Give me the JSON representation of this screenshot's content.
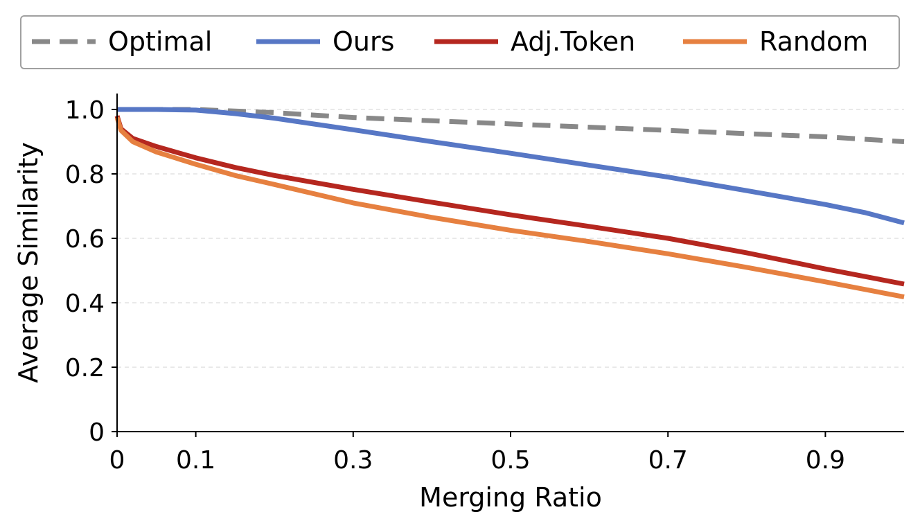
{
  "chart_data": {
    "type": "line",
    "title": "",
    "xlabel": "Merging Ratio",
    "ylabel": "Average Similarity",
    "xlim": [
      0,
      1.0
    ],
    "ylim": [
      0,
      1.05
    ],
    "xticks": [
      0,
      0.1,
      0.3,
      0.5,
      0.7,
      0.9
    ],
    "xtick_labels": [
      "0",
      "0.1",
      "0.3",
      "0.5",
      "0.7",
      "0.9"
    ],
    "yticks": [
      0,
      0.2,
      0.4,
      0.6,
      0.8,
      1.0
    ],
    "ytick_labels": [
      "0",
      "0.2",
      "0.4",
      "0.6",
      "0.8",
      "1.0"
    ],
    "grid": "horizontal dashed",
    "legend_position": "top",
    "series": [
      {
        "name": "Optimal",
        "color": "#888888",
        "style": "dashed",
        "x": [
          0,
          0.1,
          0.2,
          0.3,
          0.4,
          0.5,
          0.6,
          0.7,
          0.8,
          0.9,
          1.0
        ],
        "y": [
          1.0,
          1.0,
          0.99,
          0.975,
          0.965,
          0.955,
          0.945,
          0.935,
          0.925,
          0.915,
          0.9
        ]
      },
      {
        "name": "Ours",
        "color": "#5777c5",
        "style": "solid",
        "x": [
          0,
          0.05,
          0.1,
          0.15,
          0.2,
          0.3,
          0.4,
          0.5,
          0.6,
          0.7,
          0.8,
          0.9,
          0.95,
          1.0
        ],
        "y": [
          1.0,
          1.0,
          0.998,
          0.987,
          0.973,
          0.937,
          0.9,
          0.864,
          0.827,
          0.79,
          0.748,
          0.705,
          0.68,
          0.648
        ]
      },
      {
        "name": "Adj.Token",
        "color": "#b5271f",
        "style": "solid",
        "x": [
          0,
          0.005,
          0.02,
          0.05,
          0.1,
          0.15,
          0.2,
          0.3,
          0.4,
          0.5,
          0.6,
          0.7,
          0.8,
          0.85,
          0.9,
          1.0
        ],
        "y": [
          0.98,
          0.94,
          0.91,
          0.885,
          0.85,
          0.82,
          0.795,
          0.752,
          0.712,
          0.673,
          0.637,
          0.6,
          0.555,
          0.53,
          0.505,
          0.458
        ]
      },
      {
        "name": "Random",
        "color": "#e68040",
        "style": "solid",
        "x": [
          0,
          0.005,
          0.02,
          0.05,
          0.1,
          0.15,
          0.2,
          0.3,
          0.4,
          0.5,
          0.6,
          0.7,
          0.8,
          0.9,
          1.0
        ],
        "y": [
          0.975,
          0.935,
          0.9,
          0.868,
          0.83,
          0.795,
          0.767,
          0.71,
          0.665,
          0.625,
          0.59,
          0.552,
          0.51,
          0.465,
          0.418
        ]
      }
    ]
  }
}
